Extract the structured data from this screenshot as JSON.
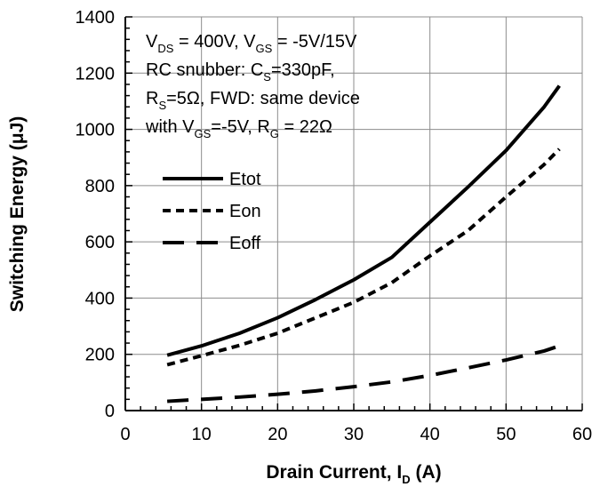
{
  "chart_data": {
    "type": "line",
    "title": "",
    "xlabel": "Drain Current, I",
    "xlabel_sub": "D",
    "xlabel_suffix": " (A)",
    "ylabel": "Switching Energy (μJ)",
    "xlim": [
      0,
      60
    ],
    "ylim": [
      0,
      1400
    ],
    "x_ticks": [
      0,
      10,
      20,
      30,
      40,
      50,
      60
    ],
    "y_ticks": [
      0,
      200,
      400,
      600,
      800,
      1000,
      1200,
      1400
    ],
    "grid": true,
    "legend_position": "left-middle",
    "annotation_lines": [
      [
        {
          "t": "V"
        },
        {
          "t": "DS",
          "sub": true
        },
        {
          "t": " = 400V, V"
        },
        {
          "t": "GS",
          "sub": true
        },
        {
          "t": " = -5V/15V"
        }
      ],
      [
        {
          "t": "RC snubber: C"
        },
        {
          "t": "S",
          "sub": true
        },
        {
          "t": "=330pF,"
        }
      ],
      [
        {
          "t": "R"
        },
        {
          "t": "S",
          "sub": true
        },
        {
          "t": "=5Ω, FWD:  same device"
        }
      ],
      [
        {
          "t": "with V"
        },
        {
          "t": "GS",
          "sub": true
        },
        {
          "t": "=-5V, R"
        },
        {
          "t": "G",
          "sub": true
        },
        {
          "t": " = 22Ω"
        }
      ]
    ],
    "series": [
      {
        "name": "Etot",
        "style": "solid",
        "color": "#000000",
        "x": [
          5.5,
          10,
          15,
          20,
          25,
          30,
          35,
          40,
          45,
          50,
          55,
          57
        ],
        "y": [
          197,
          230,
          275,
          330,
          395,
          465,
          545,
          670,
          795,
          925,
          1080,
          1155
        ]
      },
      {
        "name": "Eon",
        "style": "dashed",
        "color": "#000000",
        "x": [
          5.5,
          10,
          15,
          20,
          25,
          30,
          35,
          40,
          45,
          50,
          55,
          57
        ],
        "y": [
          163,
          195,
          232,
          275,
          330,
          385,
          455,
          550,
          640,
          760,
          875,
          930
        ]
      },
      {
        "name": "Eoff",
        "style": "longdash",
        "color": "#000000",
        "x": [
          5.5,
          10,
          15,
          20,
          25,
          30,
          35,
          40,
          45,
          50,
          55,
          57
        ],
        "y": [
          33,
          40,
          48,
          58,
          70,
          85,
          102,
          125,
          152,
          180,
          212,
          230
        ]
      }
    ]
  }
}
